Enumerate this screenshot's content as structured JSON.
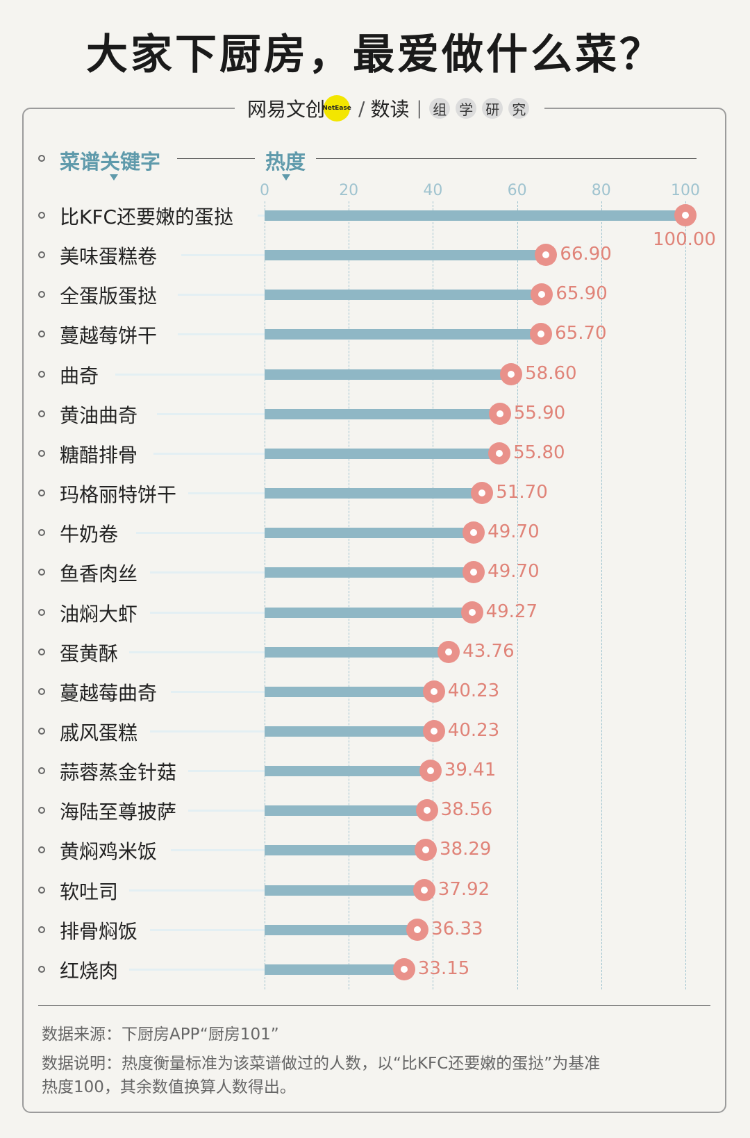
{
  "header": {
    "title": "大家下厨房，最爱做什么菜？",
    "brand": {
      "name": "网易文创",
      "dot_text": "NetEase",
      "slash": "/",
      "sub": "数读",
      "sep": "|",
      "badges": [
        "组",
        "学",
        "研",
        "究"
      ]
    }
  },
  "chart_data": {
    "type": "bar",
    "orientation": "horizontal",
    "title": "大家下厨房，最爱做什么菜？",
    "category_header": "菜谱关键字",
    "value_header": "热度",
    "xlim": [
      0,
      100
    ],
    "x_ticks": [
      "0",
      "20",
      "40",
      "60",
      "80",
      "100"
    ],
    "categories": [
      "比KFC还要嫩的蛋挞",
      "美味蛋糕卷",
      "全蛋版蛋挞",
      "蔓越莓饼干",
      "曲奇",
      "黄油曲奇",
      "糖醋排骨",
      "玛格丽特饼干",
      "牛奶卷",
      "鱼香肉丝",
      "油焖大虾",
      "蛋黄酥",
      "蔓越莓曲奇",
      "戚风蛋糕",
      "蒜蓉蒸金针菇",
      "海陆至尊披萨",
      "黄焖鸡米饭",
      "软吐司",
      "排骨焖饭",
      "红烧肉"
    ],
    "values": [
      100.0,
      66.9,
      65.9,
      65.7,
      58.6,
      55.9,
      55.8,
      51.7,
      49.7,
      49.7,
      49.27,
      43.76,
      40.23,
      40.23,
      39.41,
      38.56,
      38.29,
      37.92,
      36.33,
      33.15
    ],
    "value_labels": [
      "100.00",
      "66.90",
      "65.90",
      "65.70",
      "58.60",
      "55.90",
      "55.80",
      "51.70",
      "49.70",
      "49.70",
      "49.27",
      "43.76",
      "40.23",
      "40.23",
      "39.41",
      "38.56",
      "38.29",
      "37.92",
      "36.33",
      "33.15"
    ],
    "colors": {
      "bar": "#8fb7c5",
      "marker": "#e9918a",
      "value": "#e08378",
      "header": "#5f9aab"
    },
    "grid": true
  },
  "footer": {
    "source": "数据来源：下厨房APP“厨房101”",
    "note_line1": "数据说明：热度衡量标准为该菜谱做过的人数，以“比KFC还要嫩的蛋挞”为基准",
    "note_line2": "热度100，其余数值换算人数得出。"
  }
}
